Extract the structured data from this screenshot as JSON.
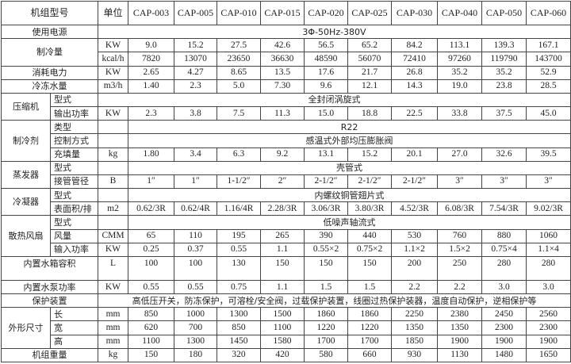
{
  "table": {
    "header": {
      "model_label": "机组型号",
      "unit_label": "单位",
      "models": [
        "CAP-003",
        "CAP-005",
        "CAP-010",
        "CAP-015",
        "CAP-020",
        "CAP-025",
        "CAP-030",
        "CAP-040",
        "CAP-050",
        "CAP-060"
      ]
    },
    "rows": [
      {
        "group": "使用电源",
        "span_text": "3Φ-50Hz-380V"
      },
      {
        "group": "制冷量",
        "group_rows": 2,
        "unit": "KW",
        "values": [
          "9.0",
          "15.2",
          "27.5",
          "42.6",
          "56.5",
          "65.2",
          "84.2",
          "113.1",
          "139.3",
          "167.1"
        ]
      },
      {
        "unit": "kcal/h",
        "values": [
          "7820",
          "13070",
          "23650",
          "36630",
          "48590",
          "56070",
          "72410",
          "97260",
          "119790",
          "143700"
        ]
      },
      {
        "group": "消耗电力",
        "unit": "KW",
        "values": [
          "2.65",
          "4.27",
          "8.65",
          "13.5",
          "17.6",
          "21.7",
          "26.8",
          "35.2",
          "35.2",
          "52.9"
        ]
      },
      {
        "group": "冷冻水量",
        "unit": "m3/h",
        "values": [
          "1.40",
          "2.3",
          "5.0",
          "7.30",
          "9.6",
          "12.1",
          "14.3",
          "19.0",
          "23.8",
          "28.5"
        ]
      },
      {
        "section": "压缩机",
        "section_rows": 2,
        "sub": "型式",
        "span_text_full": "全封闭涡旋式"
      },
      {
        "sub": "输出功率",
        "unit": "KW",
        "values": [
          "2.3",
          "3.8",
          "7.5",
          "11.3",
          "15.0",
          "18.8",
          "22.5",
          "33.8",
          "37.5",
          "45.0"
        ]
      },
      {
        "section": "制冷剂",
        "section_rows": 3,
        "sub": "类型",
        "unit": "",
        "span_text": "R22"
      },
      {
        "sub": "控制方式",
        "unit": "",
        "span_text": "感温式外部均压膨胀阀"
      },
      {
        "sub": "充填量",
        "unit": "kg",
        "values": [
          "1.80",
          "3.4",
          "6.3",
          "9.2",
          "13.1",
          "15.2",
          "20.1",
          "27.0",
          "32.6",
          "39.5"
        ]
      },
      {
        "section": "蒸发器",
        "section_rows": 2,
        "sub": "型式",
        "unit": "",
        "span_text": "壳管式"
      },
      {
        "sub": "接管管径",
        "unit": "B",
        "values": [
          "1″",
          "1″",
          "1-1/2″",
          "2″",
          "2-1/2″",
          "2-1/2″",
          "2-1/2″",
          "3″",
          "3″",
          "3″"
        ]
      },
      {
        "section": "冷凝器",
        "section_rows": 2,
        "sub": "型式",
        "unit": "",
        "span_text": "内螺纹铜管翅片式"
      },
      {
        "sub": "表面积/排",
        "unit": "m2",
        "values": [
          "0.62/3R",
          "0.62/4R",
          "1.16/4R",
          "2.28/3R",
          "3.06/3R",
          "3.80/3R",
          "4.52/3R",
          "6.08/3R",
          "7.54/3R",
          "9.02/3R"
        ]
      },
      {
        "section": "散热风扇",
        "section_rows": 3,
        "sub": "型式",
        "unit": "",
        "span_text": "低噪声轴流式"
      },
      {
        "sub": "风量",
        "unit": "CMM",
        "values": [
          "65",
          "110",
          "195",
          "265",
          "390",
          "440",
          "530",
          "760",
          "880",
          "1060"
        ]
      },
      {
        "sub": "输入功率",
        "unit": "KW",
        "values": [
          "0.25",
          "0.37",
          "0.55",
          "1.1",
          "0.55×2",
          "0.75×2",
          "1.1×2",
          "1.5×2",
          "0.75×4",
          "1.1×4"
        ]
      },
      {
        "group": "内置水箱容积",
        "unit": "L",
        "values": [
          "100",
          "100",
          "130",
          "150",
          "150",
          "150",
          "200",
          "250",
          "280",
          "280"
        ],
        "tall": true
      },
      {
        "group": "内置水泵功率",
        "unit": "KW",
        "values": [
          "0.55",
          "0.55",
          "0.75",
          "1.1",
          "1.5",
          "1.5",
          "2.2",
          "2.2",
          "3.0",
          "3.0"
        ]
      },
      {
        "group": "保护装置",
        "span_text_full": "高低压开关，防冻保护，可溶栓/安全阀，过载保护装置，线圈过热保护装器，温度自动保护，逆相保护等"
      },
      {
        "section": "外形尺寸",
        "section_rows": 3,
        "sub": "长",
        "unit": "mm",
        "values": [
          "850",
          "1000",
          "1300",
          "1500",
          "1860",
          "1860",
          "2250",
          "2380",
          "2450",
          "2560"
        ]
      },
      {
        "sub": "宽",
        "unit": "mm",
        "values": [
          "620",
          "700",
          "850",
          "1100",
          "1220",
          "1220",
          "1350",
          "1350",
          "2300",
          "2300"
        ]
      },
      {
        "sub": "高",
        "unit": "mm",
        "values": [
          "1100",
          "1300",
          "1450",
          "1580",
          "1700",
          "1700",
          "1850",
          "1900",
          "1900",
          "1900"
        ]
      },
      {
        "group": "机组重量",
        "unit": "kg",
        "values": [
          "150",
          "180",
          "320",
          "420",
          "580",
          "660",
          "930",
          "1130",
          "1480",
          "1650"
        ]
      }
    ]
  }
}
